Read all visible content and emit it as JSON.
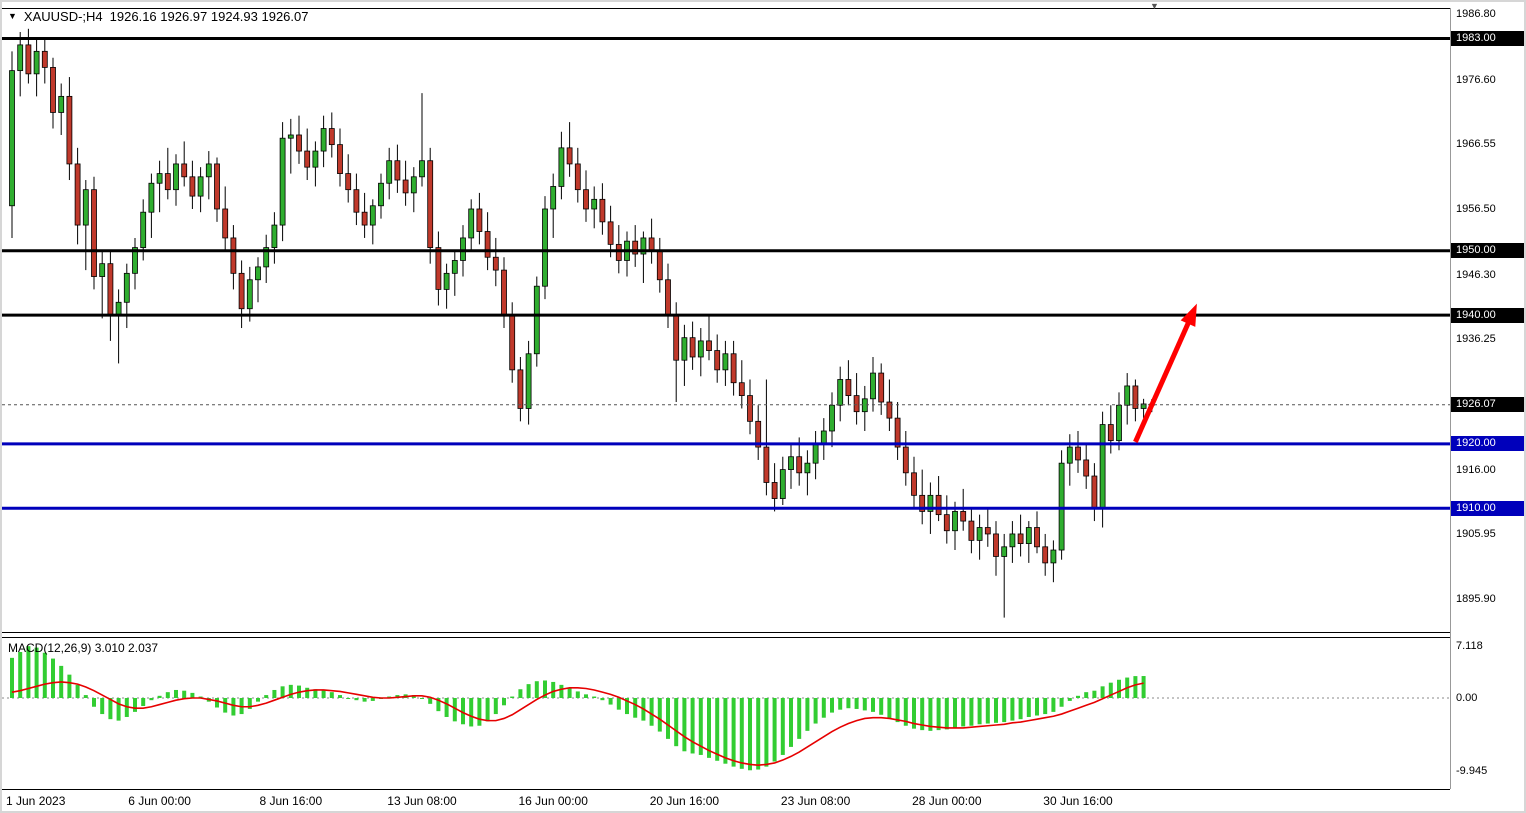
{
  "header": {
    "symbol_period": "XAUUSD-;H4",
    "ohlc": "1926.16 1926.97 1924.93 1926.07"
  },
  "icons": {
    "symbol_dropdown": "▼",
    "chart_shift_marker": "▼"
  },
  "colors": {
    "background": "#ffffff",
    "up_candle": "#2fae2f",
    "down_candle": "#c0392b",
    "candle_outline": "#000000",
    "wick": "#000000",
    "macd_hist": "#32cd32",
    "macd_signal": "#e60000",
    "axis_text": "#000000",
    "badge_text": "#ffffff",
    "border": "#000000",
    "arrow": "#ff0000",
    "current_price_line": "#555555"
  },
  "current_price": {
    "value": 1926.07,
    "label": "1926.07",
    "badge_color": "#000000"
  },
  "objects": {
    "hlines": [
      {
        "price": 1983.0,
        "label": "1983.00",
        "color": "#000000",
        "width": 3
      },
      {
        "price": 1950.0,
        "label": "1950.00",
        "color": "#000000",
        "width": 3
      },
      {
        "price": 1940.0,
        "label": "1940.00",
        "color": "#000000",
        "width": 3
      },
      {
        "price": 1920.0,
        "label": "1920.00",
        "color": "#0000bb",
        "width": 3
      },
      {
        "price": 1910.0,
        "label": "1910.00",
        "color": "#0000bb",
        "width": 3
      }
    ],
    "arrow": {
      "from_index": 137.0,
      "from_price": 1920.3,
      "to_index": 144.5,
      "to_price": 1941.8,
      "color": "#ff0000"
    }
  },
  "chart_data": {
    "type": "candlestick",
    "symbol": "XAUUSD-",
    "timeframe": "H4",
    "title": "XAUUSD-;H4 1926.16 1926.97 1924.93 1926.07",
    "y_axis_ticks": [
      {
        "label": "1986.80",
        "value": 1986.8
      },
      {
        "label": "1976.60",
        "value": 1976.6
      },
      {
        "label": "1966.55",
        "value": 1966.55
      },
      {
        "label": "1956.50",
        "value": 1956.5
      },
      {
        "label": "1946.30",
        "value": 1946.3
      },
      {
        "label": "1936.25",
        "value": 1936.25
      },
      {
        "label": "1916.00",
        "value": 1916.0
      },
      {
        "label": "1905.95",
        "value": 1905.95
      },
      {
        "label": "1895.90",
        "value": 1895.9
      }
    ],
    "x_axis_labels": [
      {
        "text": "1 Jun 2023",
        "index": 0,
        "align": "left"
      },
      {
        "text": "6 Jun 00:00",
        "index": 18
      },
      {
        "text": "8 Jun 16:00",
        "index": 34
      },
      {
        "text": "13 Jun 08:00",
        "index": 50
      },
      {
        "text": "16 Jun 00:00",
        "index": 66
      },
      {
        "text": "20 Jun 16:00",
        "index": 82
      },
      {
        "text": "23 Jun 08:00",
        "index": 98
      },
      {
        "text": "28 Jun 00:00",
        "index": 114
      },
      {
        "text": "30 Jun 16:00",
        "index": 130
      }
    ],
    "candles": [
      [
        1957,
        1981,
        1952,
        1978
      ],
      [
        1978,
        1984,
        1974,
        1982
      ],
      [
        1982,
        1984.5,
        1976,
        1977.5
      ],
      [
        1977.5,
        1983,
        1974,
        1981
      ],
      [
        1981,
        1983,
        1976,
        1978.5
      ],
      [
        1978.5,
        1980,
        1969,
        1971.5
      ],
      [
        1971.5,
        1976,
        1968,
        1974
      ],
      [
        1974,
        1977,
        1961,
        1963.5
      ],
      [
        1963.5,
        1966,
        1951,
        1954
      ],
      [
        1954,
        1961,
        1947,
        1959.5
      ],
      [
        1959.5,
        1961.5,
        1944,
        1946
      ],
      [
        1946,
        1950,
        1939.5,
        1948
      ],
      [
        1948,
        1950,
        1936,
        1940
      ],
      [
        1940,
        1944,
        1932.5,
        1942
      ],
      [
        1942,
        1948,
        1938,
        1946.5
      ],
      [
        1946.5,
        1952,
        1944,
        1950.5
      ],
      [
        1950.5,
        1958,
        1948.5,
        1956
      ],
      [
        1956,
        1962,
        1952,
        1960.5
      ],
      [
        1960.5,
        1964,
        1956,
        1962
      ],
      [
        1962,
        1966,
        1958,
        1959.5
      ],
      [
        1959.5,
        1965,
        1957,
        1963.5
      ],
      [
        1963.5,
        1967,
        1960,
        1961.5
      ],
      [
        1961.5,
        1964,
        1956.5,
        1958.5
      ],
      [
        1958.5,
        1963,
        1956,
        1961.5
      ],
      [
        1961.5,
        1965.5,
        1958,
        1963.5
      ],
      [
        1963.5,
        1964.5,
        1954.5,
        1956.5
      ],
      [
        1956.5,
        1960,
        1950,
        1952
      ],
      [
        1952,
        1954,
        1944,
        1946.5
      ],
      [
        1946.5,
        1948.5,
        1938,
        1941
      ],
      [
        1941,
        1947.5,
        1939,
        1945.5
      ],
      [
        1945.5,
        1949,
        1942,
        1947.5
      ],
      [
        1947.5,
        1952.5,
        1945,
        1950.5
      ],
      [
        1950.5,
        1956,
        1948,
        1954
      ],
      [
        1954,
        1970,
        1951.5,
        1967.5
      ],
      [
        1967.5,
        1970.5,
        1962,
        1968
      ],
      [
        1968,
        1971,
        1963.5,
        1965.5
      ],
      [
        1965.5,
        1969,
        1961,
        1963
      ],
      [
        1963,
        1967,
        1960,
        1965.5
      ],
      [
        1965.5,
        1971,
        1963,
        1969
      ],
      [
        1969,
        1971.5,
        1964.5,
        1966.5
      ],
      [
        1966.5,
        1969,
        1960,
        1962
      ],
      [
        1962,
        1965,
        1957.5,
        1959.5
      ],
      [
        1959.5,
        1962,
        1954,
        1956
      ],
      [
        1956,
        1959,
        1952,
        1954
      ],
      [
        1954,
        1958,
        1951,
        1957
      ],
      [
        1957,
        1962,
        1955,
        1960.5
      ],
      [
        1960.5,
        1966,
        1958,
        1964
      ],
      [
        1964,
        1966.5,
        1959,
        1961
      ],
      [
        1961,
        1964,
        1957,
        1959
      ],
      [
        1959,
        1963,
        1956,
        1961.5
      ],
      [
        1961.5,
        1974.5,
        1960,
        1964
      ],
      [
        1964,
        1966,
        1948,
        1950.5
      ],
      [
        1950.5,
        1953,
        1941.5,
        1944
      ],
      [
        1944,
        1948,
        1941,
        1946.5
      ],
      [
        1946.5,
        1950,
        1943,
        1948.5
      ],
      [
        1948.5,
        1954,
        1946,
        1952
      ],
      [
        1952,
        1958,
        1950,
        1956.5
      ],
      [
        1956.5,
        1959,
        1951,
        1953
      ],
      [
        1953,
        1956,
        1947,
        1949
      ],
      [
        1949,
        1952,
        1944.5,
        1947
      ],
      [
        1947,
        1949,
        1938,
        1940
      ],
      [
        1940,
        1942,
        1929.5,
        1931.5
      ],
      [
        1931.5,
        1933.5,
        1923.5,
        1925.5
      ],
      [
        1925.5,
        1936,
        1923,
        1934
      ],
      [
        1934,
        1946,
        1932,
        1944.5
      ],
      [
        1944.5,
        1958.5,
        1942.5,
        1956.5
      ],
      [
        1956.5,
        1962,
        1952,
        1960
      ],
      [
        1960,
        1968.5,
        1958,
        1966
      ],
      [
        1966,
        1970,
        1961.5,
        1963.5
      ],
      [
        1963.5,
        1966,
        1957.5,
        1959.5
      ],
      [
        1959.5,
        1962.5,
        1954.5,
        1956.5
      ],
      [
        1956.5,
        1960,
        1953.5,
        1958
      ],
      [
        1958,
        1960.5,
        1952.5,
        1954.5
      ],
      [
        1954.5,
        1957,
        1949,
        1951
      ],
      [
        1951,
        1954,
        1946.5,
        1948.5
      ],
      [
        1948.5,
        1953,
        1946,
        1951.5
      ],
      [
        1951.5,
        1954,
        1947.5,
        1949.5
      ],
      [
        1949.5,
        1953,
        1945,
        1952
      ],
      [
        1952,
        1955,
        1948,
        1950
      ],
      [
        1950,
        1952,
        1943.5,
        1945.5
      ],
      [
        1945.5,
        1948,
        1938,
        1940
      ],
      [
        1940,
        1942,
        1926.5,
        1933
      ],
      [
        1933,
        1938.5,
        1929,
        1936.5
      ],
      [
        1936.5,
        1939,
        1931.5,
        1933.5
      ],
      [
        1933.5,
        1938,
        1930.5,
        1936
      ],
      [
        1936,
        1940,
        1933,
        1934.5
      ],
      [
        1934.5,
        1937,
        1929.5,
        1931.5
      ],
      [
        1931.5,
        1936,
        1929,
        1934
      ],
      [
        1934,
        1936,
        1927.5,
        1929.5
      ],
      [
        1929.5,
        1933,
        1925.5,
        1927.5
      ],
      [
        1927.5,
        1930,
        1921.5,
        1923.5
      ],
      [
        1923.5,
        1926,
        1917.5,
        1919.5
      ],
      [
        1919.5,
        1930,
        1912,
        1914
      ],
      [
        1914,
        1917,
        1909.5,
        1911.5
      ],
      [
        1911.5,
        1918,
        1910.5,
        1916
      ],
      [
        1916,
        1920,
        1913,
        1918
      ],
      [
        1918,
        1921,
        1913.5,
        1915.5
      ],
      [
        1915.5,
        1919,
        1912,
        1917
      ],
      [
        1917,
        1922,
        1914.5,
        1920
      ],
      [
        1920,
        1924,
        1917.5,
        1922
      ],
      [
        1922,
        1928,
        1919.5,
        1926
      ],
      [
        1926,
        1932,
        1923.5,
        1930
      ],
      [
        1930,
        1933,
        1926,
        1927.5
      ],
      [
        1927.5,
        1931,
        1923,
        1925
      ],
      [
        1925,
        1929,
        1922,
        1927
      ],
      [
        1927,
        1933.5,
        1925,
        1931
      ],
      [
        1931,
        1932.5,
        1924.5,
        1926.5
      ],
      [
        1926.5,
        1930,
        1922,
        1924
      ],
      [
        1924,
        1926.5,
        1917.5,
        1919.5
      ],
      [
        1919.5,
        1922,
        1913.5,
        1915.5
      ],
      [
        1915.5,
        1918,
        1910,
        1912
      ],
      [
        1912,
        1916,
        1907.5,
        1909.5
      ],
      [
        1909.5,
        1914,
        1906,
        1912
      ],
      [
        1912,
        1915,
        1908,
        1909
      ],
      [
        1909,
        1912,
        1904.5,
        1906.5
      ],
      [
        1906.5,
        1911,
        1903.5,
        1909.5
      ],
      [
        1909.5,
        1913,
        1906.5,
        1908
      ],
      [
        1908,
        1910,
        1903,
        1905
      ],
      [
        1905,
        1909,
        1902,
        1907
      ],
      [
        1907,
        1910,
        1904,
        1906
      ],
      [
        1906,
        1908,
        1899.5,
        1902.5
      ],
      [
        1902.5,
        1906,
        1893,
        1904
      ],
      [
        1904,
        1908,
        1901.5,
        1906
      ],
      [
        1906,
        1909,
        1902.5,
        1904.5
      ],
      [
        1904.5,
        1908,
        1901.5,
        1907
      ],
      [
        1907,
        1909.5,
        1903,
        1904
      ],
      [
        1904,
        1906,
        1899.5,
        1901.5
      ],
      [
        1901.5,
        1905,
        1898.5,
        1903.5
      ],
      [
        1903.5,
        1919,
        1902,
        1917
      ],
      [
        1917,
        1921.5,
        1913.5,
        1919.5
      ],
      [
        1919.5,
        1922,
        1915.5,
        1917.5
      ],
      [
        1917.5,
        1920,
        1913,
        1915
      ],
      [
        1915,
        1917,
        1908,
        1910
      ],
      [
        1910,
        1925,
        1907,
        1923
      ],
      [
        1923,
        1926,
        1918.5,
        1920.5
      ],
      [
        1920.5,
        1928,
        1919,
        1926
      ],
      [
        1926,
        1931,
        1923,
        1929
      ],
      [
        1929,
        1930,
        1923.5,
        1925.5
      ],
      [
        1925.5,
        1927,
        1924,
        1926.2
      ],
      [
        1926.16,
        1926.97,
        1924.93,
        1926.07
      ]
    ],
    "macd": {
      "label": "MACD(12,26,9) 3.010 2.037",
      "macd_value": 3.01,
      "signal_value": 2.037,
      "ticks": [
        {
          "label": "7.118",
          "value": 7.118
        },
        {
          "label": "0.00",
          "value": 0
        },
        {
          "label": "-9.945",
          "value": -9.945
        }
      ],
      "hist": [
        5.5,
        6.3,
        7.1,
        6.9,
        6.2,
        5.4,
        4.4,
        3.2,
        1.8,
        0.4,
        -1.2,
        -2.2,
        -2.9,
        -3.1,
        -2.6,
        -1.9,
        -1.1,
        -0.3,
        0.3,
        0.8,
        1.1,
        1.0,
        0.7,
        0.2,
        -0.5,
        -1.3,
        -2.0,
        -2.4,
        -2.2,
        -1.5,
        -0.5,
        0.4,
        1.1,
        1.6,
        1.8,
        1.7,
        1.4,
        1.2,
        1.1,
        0.8,
        0.4,
        0.0,
        -0.3,
        -0.5,
        -0.4,
        -0.1,
        0.2,
        0.4,
        0.5,
        0.4,
        0.0,
        -0.8,
        -1.8,
        -2.6,
        -3.2,
        -3.6,
        -3.9,
        -3.8,
        -3.2,
        -2.2,
        -1.0,
        0.2,
        1.2,
        1.9,
        2.3,
        2.4,
        2.2,
        1.8,
        1.3,
        0.9,
        0.5,
        0.2,
        -0.3,
        -0.9,
        -1.6,
        -2.2,
        -2.7,
        -3.1,
        -3.8,
        -4.6,
        -5.6,
        -6.6,
        -7.3,
        -7.6,
        -7.8,
        -8.2,
        -8.6,
        -9.0,
        -9.4,
        -9.7,
        -9.9,
        -9.8,
        -9.4,
        -8.7,
        -7.8,
        -6.7,
        -5.6,
        -4.5,
        -3.5,
        -2.7,
        -2.0,
        -1.6,
        -1.4,
        -1.5,
        -1.7,
        -1.9,
        -2.3,
        -2.8,
        -3.3,
        -3.8,
        -4.2,
        -4.4,
        -4.5,
        -4.4,
        -4.3,
        -4.1,
        -3.9,
        -3.8,
        -3.6,
        -3.5,
        -3.4,
        -3.3,
        -3.1,
        -2.9,
        -2.6,
        -2.4,
        -2.2,
        -1.9,
        -1.2,
        -0.4,
        0.3,
        0.8,
        1.0,
        1.6,
        2.1,
        2.5,
        2.8,
        3.0,
        3.01
      ],
      "signal": [
        0.8,
        1.0,
        1.3,
        1.6,
        1.9,
        2.1,
        2.2,
        2.1,
        1.9,
        1.5,
        1.0,
        0.4,
        -0.2,
        -0.8,
        -1.2,
        -1.4,
        -1.4,
        -1.2,
        -0.9,
        -0.6,
        -0.3,
        -0.1,
        0.0,
        0.0,
        -0.2,
        -0.4,
        -0.7,
        -1.0,
        -1.2,
        -1.2,
        -1.0,
        -0.7,
        -0.3,
        0.1,
        0.5,
        0.8,
        1.0,
        1.1,
        1.1,
        1.0,
        0.9,
        0.7,
        0.5,
        0.3,
        0.1,
        0.0,
        0.0,
        0.1,
        0.2,
        0.3,
        0.3,
        0.1,
        -0.3,
        -0.8,
        -1.4,
        -2.0,
        -2.5,
        -2.9,
        -3.1,
        -3.1,
        -2.8,
        -2.3,
        -1.6,
        -0.9,
        -0.2,
        0.4,
        0.9,
        1.2,
        1.4,
        1.4,
        1.3,
        1.1,
        0.8,
        0.5,
        0.1,
        -0.4,
        -0.9,
        -1.5,
        -2.2,
        -2.9,
        -3.7,
        -4.5,
        -5.3,
        -6.0,
        -6.6,
        -7.2,
        -7.7,
        -8.2,
        -8.6,
        -8.9,
        -9.1,
        -9.2,
        -9.1,
        -8.9,
        -8.5,
        -8.0,
        -7.4,
        -6.7,
        -6.0,
        -5.3,
        -4.6,
        -4.0,
        -3.5,
        -3.1,
        -2.8,
        -2.7,
        -2.7,
        -2.8,
        -3.0,
        -3.2,
        -3.5,
        -3.7,
        -3.9,
        -4.0,
        -4.1,
        -4.1,
        -4.1,
        -4.0,
        -3.9,
        -3.8,
        -3.7,
        -3.6,
        -3.4,
        -3.3,
        -3.1,
        -2.9,
        -2.7,
        -2.5,
        -2.2,
        -1.8,
        -1.4,
        -1.0,
        -0.6,
        -0.1,
        0.4,
        0.9,
        1.4,
        1.8,
        2.037
      ]
    }
  }
}
